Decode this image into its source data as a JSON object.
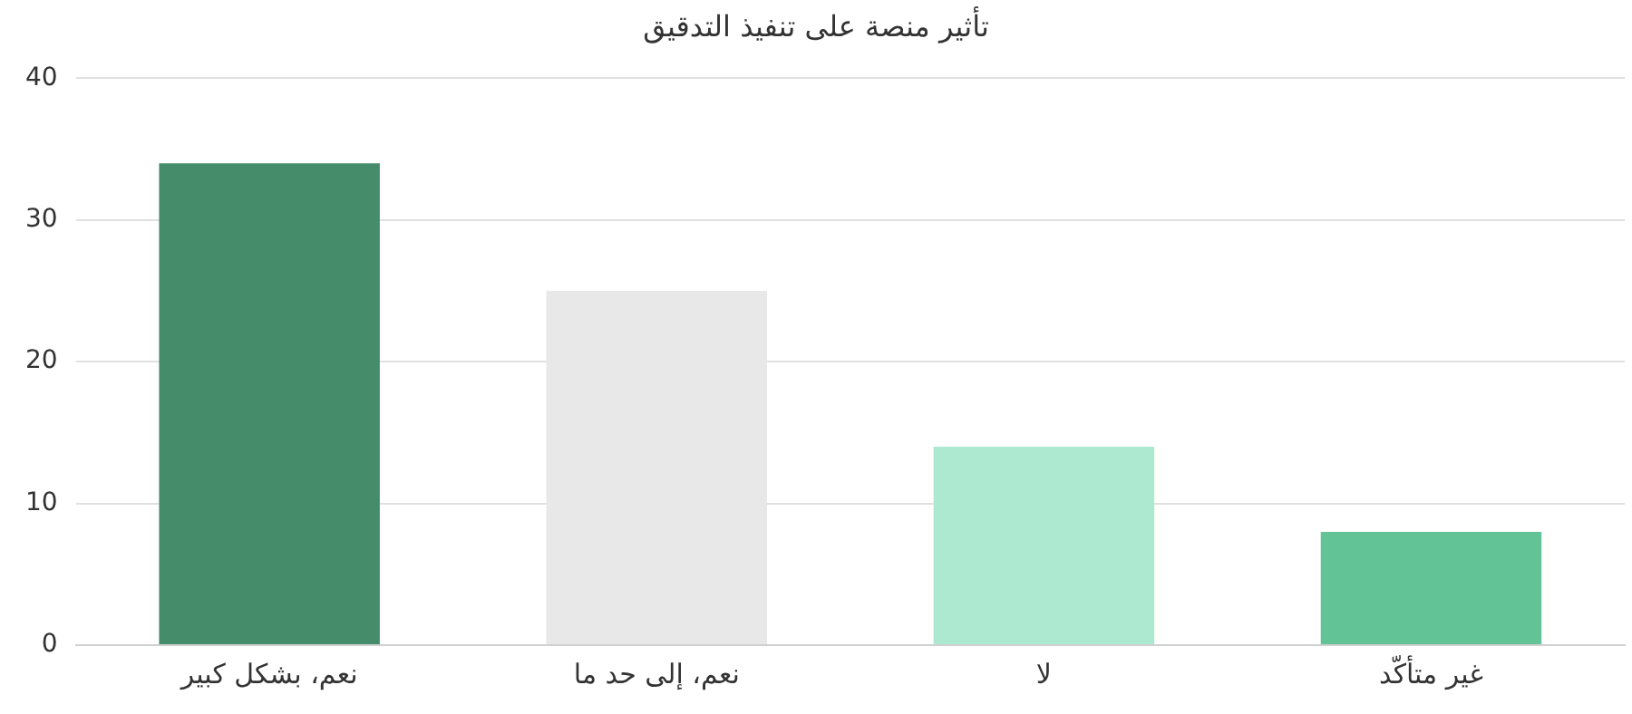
{
  "chart_data": {
    "type": "bar",
    "title": "تأثير منصة على تنفيذ التدقيق",
    "categories": [
      "نعم، بشكل كبير",
      "نعم، إلى حد ما",
      "لا",
      "غير متأكّد"
    ],
    "values": [
      34,
      25,
      14,
      8
    ],
    "colors": [
      "#448c6a",
      "#e8e8e8",
      "#ade8d0",
      "#62c496"
    ],
    "ylim": [
      0,
      40
    ],
    "yticks": [
      0,
      10,
      20,
      30,
      40
    ],
    "grid": "y"
  }
}
